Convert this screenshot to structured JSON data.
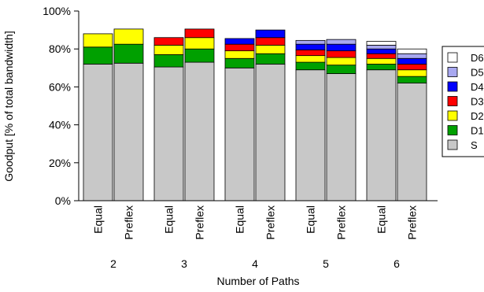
{
  "chart_data": {
    "type": "bar",
    "stacked": true,
    "xlabel": "Number of Paths",
    "ylabel": "Goodput [% of total bandwidth]",
    "ylim": [
      0,
      100
    ],
    "yticks": [
      0,
      20,
      40,
      60,
      80,
      100
    ],
    "ytick_labels": [
      "0%",
      "20%",
      "40%",
      "60%",
      "80%",
      "100%"
    ],
    "groups": [
      {
        "label": "2",
        "bars": [
          {
            "label": "Equal",
            "values": [
              72,
              9,
              7,
              0,
              0,
              0,
              0
            ]
          },
          {
            "label": "Preflex",
            "values": [
              72.5,
              10,
              8,
              0,
              0,
              0,
              0
            ]
          }
        ]
      },
      {
        "label": "3",
        "bars": [
          {
            "label": "Equal",
            "values": [
              70.5,
              6.5,
              5,
              4,
              0,
              0,
              0
            ]
          },
          {
            "label": "Preflex",
            "values": [
              73,
              7,
              6,
              4.5,
              0,
              0,
              0
            ]
          }
        ]
      },
      {
        "label": "4",
        "bars": [
          {
            "label": "Equal",
            "values": [
              70,
              5,
              4,
              3.5,
              3,
              0,
              0
            ]
          },
          {
            "label": "Preflex",
            "values": [
              72,
              5.5,
              4.5,
              4,
              4,
              0,
              0
            ]
          }
        ]
      },
      {
        "label": "5",
        "bars": [
          {
            "label": "Equal",
            "values": [
              69,
              4,
              3.5,
              3,
              3,
              2,
              0
            ]
          },
          {
            "label": "Preflex",
            "values": [
              67,
              4.5,
              4,
              3.5,
              3.5,
              2.5,
              0
            ]
          }
        ]
      },
      {
        "label": "6",
        "bars": [
          {
            "label": "Equal",
            "values": [
              69,
              3,
              3,
              2.5,
              2.5,
              2,
              2
            ]
          },
          {
            "label": "Preflex",
            "values": [
              62,
              3.5,
              3.5,
              3,
              3,
              2.5,
              2.5
            ]
          }
        ]
      }
    ],
    "legend": {
      "placement": "right",
      "entries": [
        "D6",
        "D5",
        "D4",
        "D3",
        "D2",
        "D1",
        "S"
      ]
    },
    "series": [
      {
        "name": "S",
        "color": "#c8c8c8"
      },
      {
        "name": "D1",
        "color": "#00a000"
      },
      {
        "name": "D2",
        "color": "#ffff00"
      },
      {
        "name": "D3",
        "color": "#ff0000"
      },
      {
        "name": "D4",
        "color": "#0000ff"
      },
      {
        "name": "D5",
        "color": "#a8a8f0"
      },
      {
        "name": "D6",
        "color": "#ffffff"
      }
    ]
  }
}
